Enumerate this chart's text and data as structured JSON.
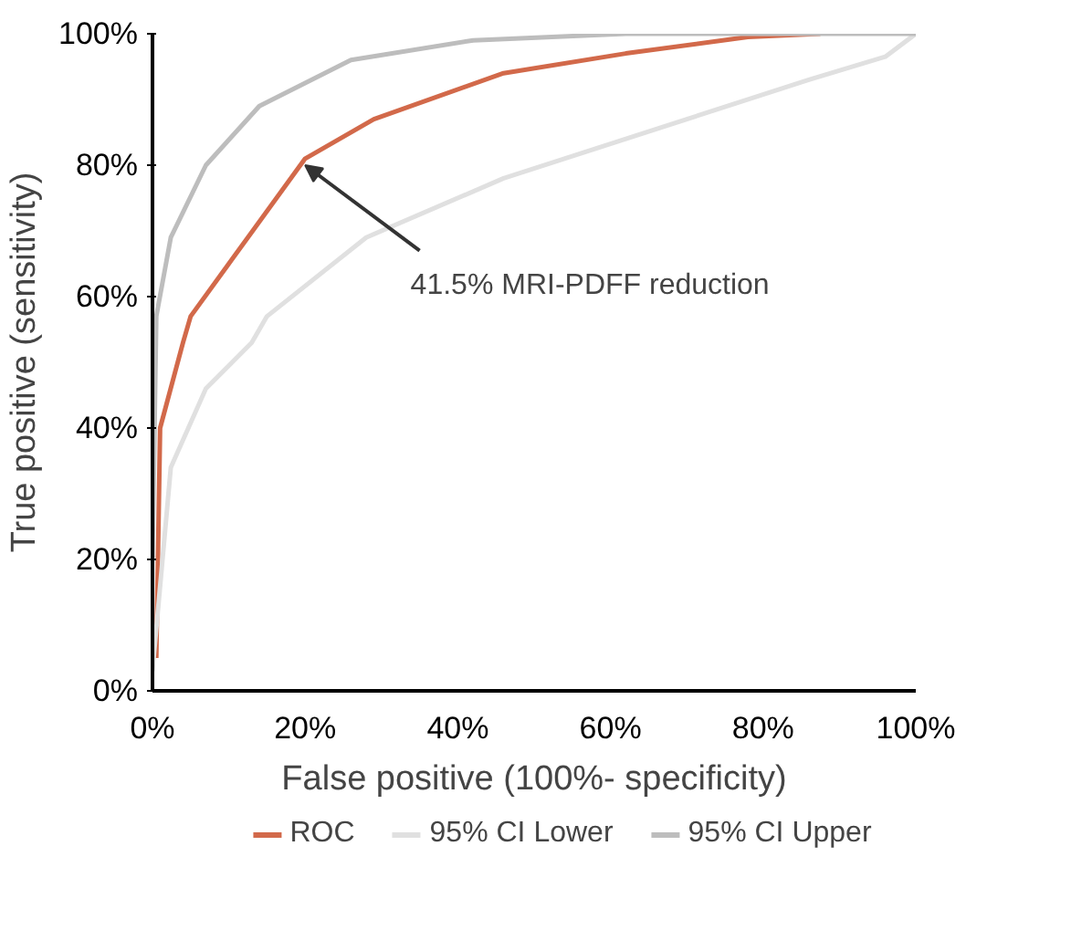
{
  "chart_data": {
    "type": "line",
    "xlabel": "False positive (100%- specificity)",
    "ylabel": "True positive (sensitivity)",
    "xlim": [
      0,
      100
    ],
    "ylim": [
      0,
      100
    ],
    "xticks": [
      {
        "value": 0,
        "label": "0%"
      },
      {
        "value": 20,
        "label": "20%"
      },
      {
        "value": 40,
        "label": "40%"
      },
      {
        "value": 60,
        "label": "60%"
      },
      {
        "value": 80,
        "label": "80%"
      },
      {
        "value": 100,
        "label": "100%"
      }
    ],
    "yticks": [
      {
        "value": 0,
        "label": "0%"
      },
      {
        "value": 20,
        "label": "20%"
      },
      {
        "value": 40,
        "label": "40%"
      },
      {
        "value": 60,
        "label": "60%"
      },
      {
        "value": 80,
        "label": "80%"
      },
      {
        "value": 100,
        "label": "100%"
      }
    ],
    "grid": false,
    "legend": "bottom",
    "marker": "none",
    "line_style": "solid",
    "series": [
      {
        "name": "ROC",
        "color": "#d2694a",
        "x": [
          0.5,
          1,
          4,
          5,
          10,
          20,
          29,
          46,
          62,
          78,
          87.5
        ],
        "values": [
          5,
          40,
          53,
          57,
          65,
          81,
          87,
          94,
          97,
          99.5,
          100
        ]
      },
      {
        "name": "95% CI Lower",
        "color": "#e0e0e0",
        "x": [
          0,
          2.4,
          7,
          13,
          15,
          28,
          46,
          70,
          86,
          96,
          100
        ],
        "values": [
          3,
          34,
          46,
          53,
          57,
          69,
          78,
          87,
          93,
          96.5,
          100
        ]
      },
      {
        "name": "95% CI Upper",
        "color": "#bdbdbd",
        "x": [
          0,
          0.5,
          2.4,
          7,
          14,
          26,
          42,
          62,
          100
        ],
        "values": [
          20,
          57,
          69,
          80,
          89,
          96,
          99,
          100,
          100
        ]
      }
    ],
    "annotations": [
      {
        "text": "41.5% MRI-PDFF reduction",
        "x": 20,
        "y": 80
      }
    ]
  }
}
